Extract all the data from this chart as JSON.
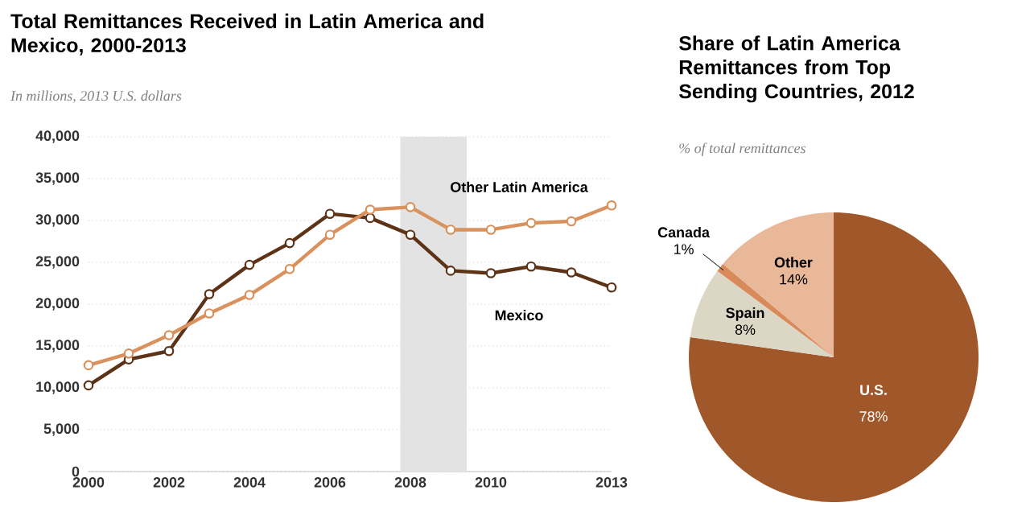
{
  "chart_data": [
    {
      "type": "line",
      "title": "Total Remittances Received in Latin America and Mexico, 2000-2013",
      "subtitle": "In millions, 2013 U.S. dollars",
      "x": [
        2000,
        2001,
        2002,
        2003,
        2004,
        2005,
        2006,
        2007,
        2008,
        2009,
        2010,
        2011,
        2012,
        2013
      ],
      "series": [
        {
          "name": "Mexico",
          "color": "#5c3317",
          "values": [
            10300,
            13400,
            14400,
            21200,
            24700,
            27300,
            30800,
            30300,
            28300,
            24000,
            23700,
            24500,
            23800,
            22000
          ]
        },
        {
          "name": "Other Latin America",
          "color": "#d9915e",
          "values": [
            12700,
            14100,
            16300,
            18900,
            21100,
            24200,
            28300,
            31300,
            31600,
            28900,
            28900,
            29700,
            29900,
            31800
          ]
        }
      ],
      "xlim": [
        2000,
        2013
      ],
      "xticks": [
        2000,
        2002,
        2004,
        2006,
        2008,
        2010,
        2013
      ],
      "ylim": [
        0,
        40000
      ],
      "yticks": [
        {
          "value": 0,
          "label": "0"
        },
        {
          "value": 5000,
          "label": "5,000"
        },
        {
          "value": 10000,
          "label": "10,000"
        },
        {
          "value": 15000,
          "label": "15,000"
        },
        {
          "value": 20000,
          "label": "20,000"
        },
        {
          "value": 25000,
          "label": "25,000"
        },
        {
          "value": 30000,
          "label": "30,000"
        },
        {
          "value": 35000,
          "label": "35,000"
        },
        {
          "value": 40000,
          "label": "40,000"
        }
      ],
      "bands": [
        {
          "axis": "x",
          "from": 2007.75,
          "to": 2009.4,
          "color": "#e3e3e3"
        }
      ],
      "grid": "y",
      "marker": "circle",
      "line_style": "solid"
    },
    {
      "type": "pie",
      "title": "Share of Latin America Remittances from Top Sending Countries, 2012",
      "subtitle": "% of total remittances",
      "categories": [
        "U.S.",
        "Spain",
        "Canada",
        "Other"
      ],
      "values": [
        78,
        8,
        1,
        14
      ],
      "value_labels": [
        "78%",
        "8%",
        "1%",
        "14%"
      ],
      "colors": [
        "#a0572a",
        "#dcd6c4",
        "#d98a5a",
        "#e9b899"
      ]
    }
  ]
}
